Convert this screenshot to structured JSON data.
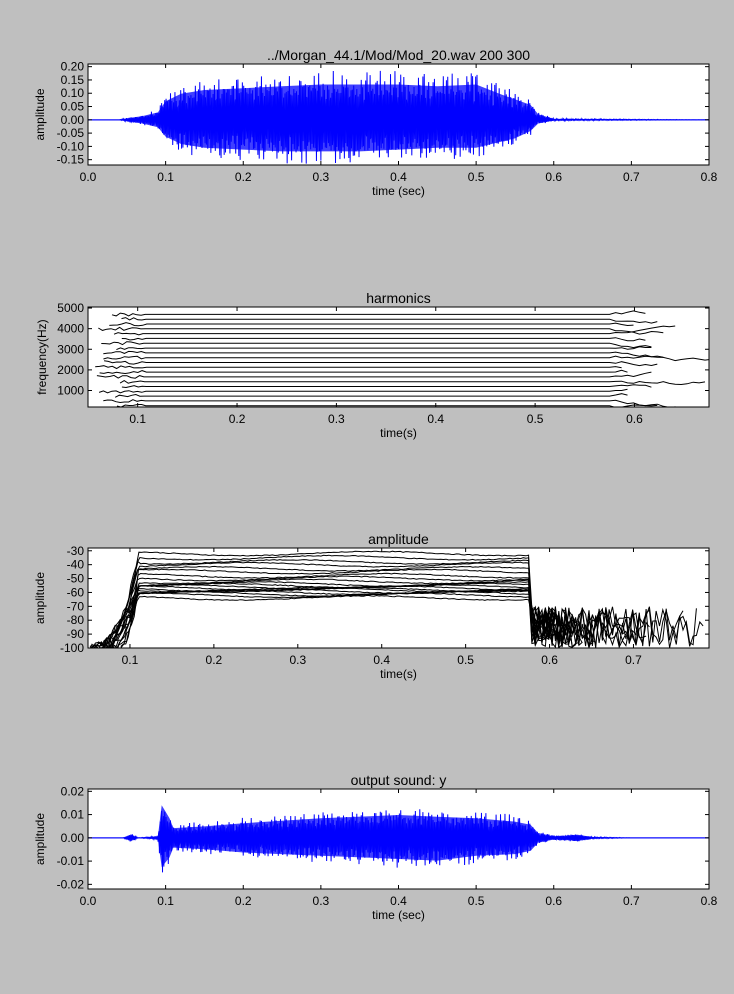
{
  "chart_data": [
    {
      "type": "line",
      "id": "input",
      "title": "../Morgan_44.1/Mod/Mod_20.wav 200 300",
      "xlabel": "time (sec)",
      "ylabel": "amplitude",
      "xlim": [
        0.0,
        0.8
      ],
      "ylim": [
        -0.17,
        0.21
      ],
      "xticks": [
        "0.0",
        "0.1",
        "0.2",
        "0.3",
        "0.4",
        "0.5",
        "0.6",
        "0.7",
        "0.8"
      ],
      "yticks": [
        "0.20",
        "0.15",
        "0.10",
        "0.05",
        "0.00",
        "-0.05",
        "-0.10",
        "-0.15"
      ],
      "color": "#0000ff",
      "envelope": {
        "x": [
          0.0,
          0.04,
          0.05,
          0.07,
          0.09,
          0.1,
          0.12,
          0.15,
          0.2,
          0.25,
          0.3,
          0.35,
          0.4,
          0.45,
          0.5,
          0.53,
          0.55,
          0.57,
          0.58,
          0.6,
          0.8
        ],
        "upper": [
          0.0,
          0.0,
          0.008,
          0.02,
          0.04,
          0.1,
          0.14,
          0.16,
          0.17,
          0.18,
          0.19,
          0.19,
          0.19,
          0.18,
          0.19,
          0.14,
          0.11,
          0.08,
          0.03,
          0.005,
          0.0
        ],
        "lower": [
          0.0,
          0.0,
          -0.008,
          -0.02,
          -0.04,
          -0.09,
          -0.13,
          -0.15,
          -0.16,
          -0.17,
          -0.17,
          -0.17,
          -0.16,
          -0.15,
          -0.15,
          -0.12,
          -0.1,
          -0.06,
          -0.02,
          -0.004,
          0.0
        ]
      }
    },
    {
      "type": "line",
      "id": "harmonics",
      "title": "harmonics",
      "xlabel": "time(s)",
      "ylabel": "frequency(Hz)",
      "xlim": [
        0.05,
        0.675
      ],
      "ylim": [
        200,
        5050
      ],
      "xticks": [
        "0.1",
        "0.2",
        "0.3",
        "0.4",
        "0.5",
        "0.6"
      ],
      "yticks": [
        "5000",
        "4000",
        "3000",
        "2000",
        "1000"
      ],
      "color": "#000000",
      "f0": 233,
      "harmonic_count": 20,
      "onset": 0.095,
      "offset": 0.575
    },
    {
      "type": "line",
      "id": "amplitudes",
      "title": "amplitude",
      "xlabel": "time(s)",
      "ylabel": "amplitude",
      "xlim": [
        0.05,
        0.79
      ],
      "ylim": [
        -100,
        -28
      ],
      "xticks": [
        "0.1",
        "0.2",
        "0.3",
        "0.4",
        "0.5",
        "0.6",
        "0.7"
      ],
      "yticks": [
        "-30",
        "-40",
        "-50",
        "-60",
        "-70",
        "-80",
        "-90",
        "-100"
      ],
      "color": "#000000",
      "levels": [
        -32,
        -35,
        -38,
        -40,
        -43,
        -45,
        -48,
        -50,
        -52,
        -54,
        -55,
        -56,
        -57,
        -58,
        -58,
        -59,
        -60,
        -61,
        -62,
        -64
      ],
      "onset": 0.11,
      "offset": 0.575
    },
    {
      "type": "line",
      "id": "output",
      "title": "output sound: y",
      "xlabel": "time (sec)",
      "ylabel": "amplitude",
      "xlim": [
        0.0,
        0.8
      ],
      "ylim": [
        -0.022,
        0.021
      ],
      "xticks": [
        "0.0",
        "0.1",
        "0.2",
        "0.3",
        "0.4",
        "0.5",
        "0.6",
        "0.7",
        "0.8"
      ],
      "yticks": [
        "0.02",
        "0.01",
        "0.00",
        "-0.01",
        "-0.02"
      ],
      "color": "#0000ff",
      "envelope": {
        "x": [
          0.0,
          0.045,
          0.055,
          0.065,
          0.09,
          0.095,
          0.105,
          0.11,
          0.15,
          0.2,
          0.3,
          0.4,
          0.45,
          0.5,
          0.55,
          0.57,
          0.58,
          0.6,
          0.62,
          0.63,
          0.65,
          0.7,
          0.8
        ],
        "upper": [
          0.0,
          0.0,
          0.002,
          0.0,
          0.001,
          0.02,
          0.012,
          0.006,
          0.007,
          0.009,
          0.012,
          0.014,
          0.013,
          0.012,
          0.01,
          0.008,
          0.003,
          0.001,
          0.0015,
          0.002,
          0.0005,
          0.0,
          0.0
        ],
        "lower": [
          0.0,
          0.0,
          -0.002,
          0.0,
          -0.001,
          -0.018,
          -0.012,
          -0.006,
          -0.007,
          -0.009,
          -0.011,
          -0.013,
          -0.014,
          -0.011,
          -0.01,
          -0.008,
          -0.003,
          -0.001,
          -0.0015,
          -0.002,
          -0.0005,
          0.0,
          0.0
        ]
      }
    }
  ]
}
